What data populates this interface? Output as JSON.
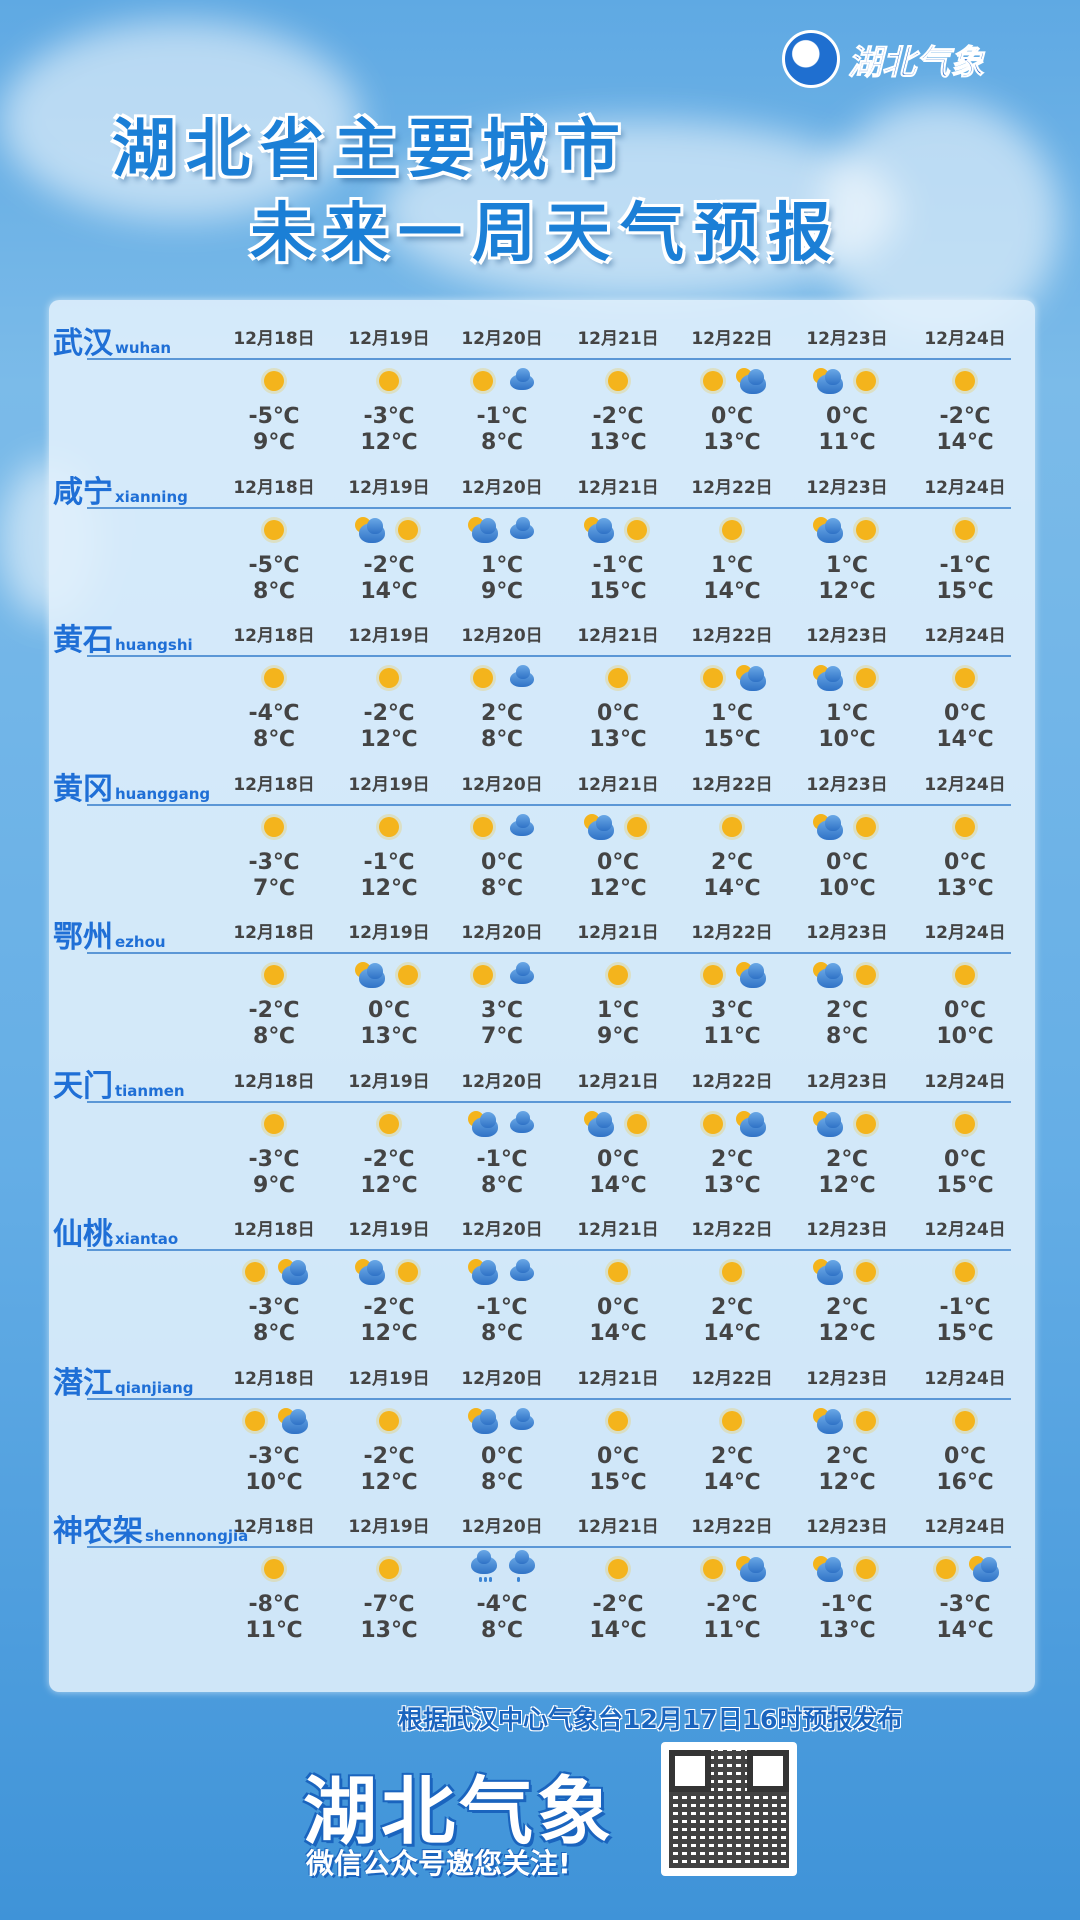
{
  "header": {
    "logo_text": "湖北气象",
    "title_line1": "湖北省主要城市",
    "title_line2": "未来一周天气预报"
  },
  "dates": [
    "12月18日",
    "12月19日",
    "12月20日",
    "12月21日",
    "12月22日",
    "12月23日",
    "12月24日"
  ],
  "cities": [
    {
      "name": "武汉",
      "pinyin": "wuhan",
      "days": [
        {
          "icons": [
            "sun"
          ],
          "low": "-5℃",
          "high": "9℃"
        },
        {
          "icons": [
            "sun"
          ],
          "low": "-3℃",
          "high": "12℃"
        },
        {
          "icons": [
            "sun",
            "cloudy"
          ],
          "low": "-1℃",
          "high": "8℃"
        },
        {
          "icons": [
            "sun"
          ],
          "low": "-2℃",
          "high": "13℃"
        },
        {
          "icons": [
            "sun",
            "partly-cloudy"
          ],
          "low": "0℃",
          "high": "13℃"
        },
        {
          "icons": [
            "partly-cloudy",
            "sun"
          ],
          "low": "0℃",
          "high": "11℃"
        },
        {
          "icons": [
            "sun"
          ],
          "low": "-2℃",
          "high": "14℃"
        }
      ]
    },
    {
      "name": "咸宁",
      "pinyin": "xianning",
      "days": [
        {
          "icons": [
            "sun"
          ],
          "low": "-5℃",
          "high": "8℃"
        },
        {
          "icons": [
            "partly-cloudy",
            "sun"
          ],
          "low": "-2℃",
          "high": "14℃"
        },
        {
          "icons": [
            "partly-cloudy",
            "cloudy"
          ],
          "low": "1℃",
          "high": "9℃"
        },
        {
          "icons": [
            "partly-cloudy",
            "sun"
          ],
          "low": "-1℃",
          "high": "15℃"
        },
        {
          "icons": [
            "sun"
          ],
          "low": "1℃",
          "high": "14℃"
        },
        {
          "icons": [
            "partly-cloudy",
            "sun"
          ],
          "low": "1℃",
          "high": "12℃"
        },
        {
          "icons": [
            "sun"
          ],
          "low": "-1℃",
          "high": "15℃"
        }
      ]
    },
    {
      "name": "黄石",
      "pinyin": "huangshi",
      "days": [
        {
          "icons": [
            "sun"
          ],
          "low": "-4℃",
          "high": "8℃"
        },
        {
          "icons": [
            "sun"
          ],
          "low": "-2℃",
          "high": "12℃"
        },
        {
          "icons": [
            "sun",
            "cloudy"
          ],
          "low": "2℃",
          "high": "8℃"
        },
        {
          "icons": [
            "sun"
          ],
          "low": "0℃",
          "high": "13℃"
        },
        {
          "icons": [
            "sun",
            "partly-cloudy"
          ],
          "low": "1℃",
          "high": "15℃"
        },
        {
          "icons": [
            "partly-cloudy",
            "sun"
          ],
          "low": "1℃",
          "high": "10℃"
        },
        {
          "icons": [
            "sun"
          ],
          "low": "0℃",
          "high": "14℃"
        }
      ]
    },
    {
      "name": "黄冈",
      "pinyin": "huanggang",
      "days": [
        {
          "icons": [
            "sun"
          ],
          "low": "-3℃",
          "high": "7℃"
        },
        {
          "icons": [
            "sun"
          ],
          "low": "-1℃",
          "high": "12℃"
        },
        {
          "icons": [
            "sun",
            "cloudy"
          ],
          "low": "0℃",
          "high": "8℃"
        },
        {
          "icons": [
            "partly-cloudy",
            "sun"
          ],
          "low": "0℃",
          "high": "12℃"
        },
        {
          "icons": [
            "sun"
          ],
          "low": "2℃",
          "high": "14℃"
        },
        {
          "icons": [
            "partly-cloudy",
            "sun"
          ],
          "low": "0℃",
          "high": "10℃"
        },
        {
          "icons": [
            "sun"
          ],
          "low": "0℃",
          "high": "13℃"
        }
      ]
    },
    {
      "name": "鄂州",
      "pinyin": "ezhou",
      "days": [
        {
          "icons": [
            "sun"
          ],
          "low": "-2℃",
          "high": "8℃"
        },
        {
          "icons": [
            "partly-cloudy",
            "sun"
          ],
          "low": "0℃",
          "high": "13℃"
        },
        {
          "icons": [
            "sun",
            "cloudy"
          ],
          "low": "3℃",
          "high": "7℃"
        },
        {
          "icons": [
            "sun"
          ],
          "low": "1℃",
          "high": "9℃"
        },
        {
          "icons": [
            "sun",
            "partly-cloudy"
          ],
          "low": "3℃",
          "high": "11℃"
        },
        {
          "icons": [
            "partly-cloudy",
            "sun"
          ],
          "low": "2℃",
          "high": "8℃"
        },
        {
          "icons": [
            "sun"
          ],
          "low": "0℃",
          "high": "10℃"
        }
      ]
    },
    {
      "name": "天门",
      "pinyin": "tianmen",
      "days": [
        {
          "icons": [
            "sun"
          ],
          "low": "-3℃",
          "high": "9℃"
        },
        {
          "icons": [
            "sun"
          ],
          "low": "-2℃",
          "high": "12℃"
        },
        {
          "icons": [
            "partly-cloudy",
            "cloudy"
          ],
          "low": "-1℃",
          "high": "8℃"
        },
        {
          "icons": [
            "partly-cloudy",
            "sun"
          ],
          "low": "0℃",
          "high": "14℃"
        },
        {
          "icons": [
            "sun",
            "partly-cloudy"
          ],
          "low": "2℃",
          "high": "13℃"
        },
        {
          "icons": [
            "partly-cloudy",
            "sun"
          ],
          "low": "2℃",
          "high": "12℃"
        },
        {
          "icons": [
            "sun"
          ],
          "low": "0℃",
          "high": "15℃"
        }
      ]
    },
    {
      "name": "仙桃",
      "pinyin": "xiantao",
      "days": [
        {
          "icons": [
            "sun",
            "partly-cloudy"
          ],
          "low": "-3℃",
          "high": "8℃"
        },
        {
          "icons": [
            "partly-cloudy",
            "sun"
          ],
          "low": "-2℃",
          "high": "12℃"
        },
        {
          "icons": [
            "partly-cloudy",
            "cloudy"
          ],
          "low": "-1℃",
          "high": "8℃"
        },
        {
          "icons": [
            "sun"
          ],
          "low": "0℃",
          "high": "14℃"
        },
        {
          "icons": [
            "sun"
          ],
          "low": "2℃",
          "high": "14℃"
        },
        {
          "icons": [
            "partly-cloudy",
            "sun"
          ],
          "low": "2℃",
          "high": "12℃"
        },
        {
          "icons": [
            "sun"
          ],
          "low": "-1℃",
          "high": "15℃"
        }
      ]
    },
    {
      "name": "潜江",
      "pinyin": "qianjiang",
      "days": [
        {
          "icons": [
            "sun",
            "partly-cloudy"
          ],
          "low": "-3℃",
          "high": "10℃"
        },
        {
          "icons": [
            "sun"
          ],
          "low": "-2℃",
          "high": "12℃"
        },
        {
          "icons": [
            "partly-cloudy",
            "cloudy"
          ],
          "low": "0℃",
          "high": "8℃"
        },
        {
          "icons": [
            "sun"
          ],
          "low": "0℃",
          "high": "15℃"
        },
        {
          "icons": [
            "sun"
          ],
          "low": "2℃",
          "high": "14℃"
        },
        {
          "icons": [
            "partly-cloudy",
            "sun"
          ],
          "low": "2℃",
          "high": "12℃"
        },
        {
          "icons": [
            "sun"
          ],
          "low": "0℃",
          "high": "16℃"
        }
      ]
    },
    {
      "name": "神农架",
      "pinyin": "shennongjia",
      "days": [
        {
          "icons": [
            "sun"
          ],
          "low": "-8℃",
          "high": "11℃"
        },
        {
          "icons": [
            "sun"
          ],
          "low": "-7℃",
          "high": "13℃"
        },
        {
          "icons": [
            "snow-rain",
            "light-rain"
          ],
          "low": "-4℃",
          "high": "8℃"
        },
        {
          "icons": [
            "sun"
          ],
          "low": "-2℃",
          "high": "14℃"
        },
        {
          "icons": [
            "sun",
            "partly-cloudy"
          ],
          "low": "-2℃",
          "high": "11℃"
        },
        {
          "icons": [
            "partly-cloudy",
            "sun"
          ],
          "low": "-1℃",
          "high": "13℃"
        },
        {
          "icons": [
            "sun",
            "partly-cloudy"
          ],
          "low": "-3℃",
          "high": "14℃"
        }
      ]
    }
  ],
  "footer": {
    "note": "根据武汉中心气象台12月17日16时预报发布",
    "brand": "湖北气象",
    "subtitle": "微信公众号邀您关注!"
  },
  "colors": {
    "accent": "#1f6fd6",
    "sun": "#f4b41c",
    "cloud": "#2f72c6",
    "text": "#444444"
  }
}
